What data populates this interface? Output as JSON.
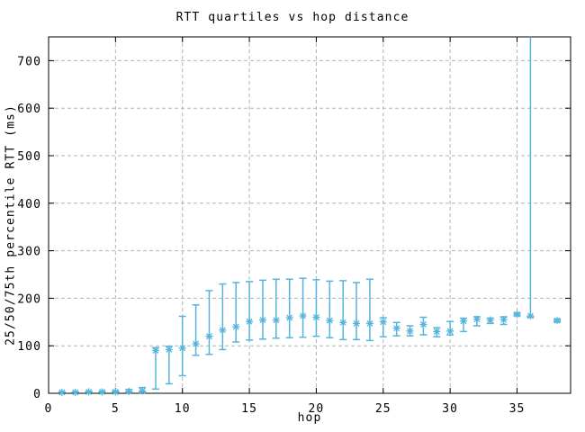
{
  "chart_data": {
    "type": "scatter",
    "subtype": "errorbars",
    "title": "RTT quartiles vs hop distance",
    "xlabel": "hop",
    "ylabel": "25/50/75th percentile RTT (ms)",
    "xlim": [
      0,
      39
    ],
    "ylim": [
      0,
      750
    ],
    "xticks": [
      0,
      5,
      10,
      15,
      20,
      25,
      30,
      35
    ],
    "yticks": [
      0,
      100,
      200,
      300,
      400,
      500,
      600,
      700
    ],
    "grid": true,
    "legend": false,
    "marker": "asterisk",
    "series_name": "RTT quartiles",
    "colors": {
      "series": "#56b4dc",
      "grid": "#b4b4b4",
      "axis": "#000000",
      "background": "#ffffff"
    },
    "points": [
      {
        "hop": 1,
        "q1": 2,
        "median": 2,
        "q3": 3
      },
      {
        "hop": 2,
        "q1": 2,
        "median": 2,
        "q3": 3
      },
      {
        "hop": 3,
        "q1": 2,
        "median": 3,
        "q3": 4
      },
      {
        "hop": 4,
        "q1": 2,
        "median": 3,
        "q3": 4
      },
      {
        "hop": 5,
        "q1": 2,
        "median": 3,
        "q3": 5
      },
      {
        "hop": 6,
        "q1": 2,
        "median": 4,
        "q3": 8
      },
      {
        "hop": 7,
        "q1": 3,
        "median": 5,
        "q3": 12
      },
      {
        "hop": 8,
        "q1": 9,
        "median": 90,
        "q3": 96
      },
      {
        "hop": 9,
        "q1": 20,
        "median": 92,
        "q3": 99
      },
      {
        "hop": 10,
        "q1": 37,
        "median": 95,
        "q3": 162
      },
      {
        "hop": 11,
        "q1": 80,
        "median": 104,
        "q3": 186
      },
      {
        "hop": 12,
        "q1": 82,
        "median": 120,
        "q3": 216
      },
      {
        "hop": 13,
        "q1": 92,
        "median": 133,
        "q3": 230
      },
      {
        "hop": 14,
        "q1": 108,
        "median": 140,
        "q3": 233
      },
      {
        "hop": 15,
        "q1": 112,
        "median": 151,
        "q3": 235
      },
      {
        "hop": 16,
        "q1": 114,
        "median": 154,
        "q3": 238
      },
      {
        "hop": 17,
        "q1": 116,
        "median": 154,
        "q3": 240
      },
      {
        "hop": 18,
        "q1": 117,
        "median": 159,
        "q3": 240
      },
      {
        "hop": 19,
        "q1": 118,
        "median": 163,
        "q3": 242
      },
      {
        "hop": 20,
        "q1": 120,
        "median": 160,
        "q3": 239
      },
      {
        "hop": 21,
        "q1": 117,
        "median": 153,
        "q3": 236
      },
      {
        "hop": 22,
        "q1": 113,
        "median": 149,
        "q3": 237
      },
      {
        "hop": 23,
        "q1": 113,
        "median": 147,
        "q3": 233
      },
      {
        "hop": 24,
        "q1": 111,
        "median": 147,
        "q3": 240
      },
      {
        "hop": 25,
        "q1": 119,
        "median": 150,
        "q3": 159
      },
      {
        "hop": 26,
        "q1": 121,
        "median": 137,
        "q3": 149
      },
      {
        "hop": 27,
        "q1": 121,
        "median": 131,
        "q3": 142
      },
      {
        "hop": 28,
        "q1": 123,
        "median": 145,
        "q3": 160
      },
      {
        "hop": 29,
        "q1": 119,
        "median": 130,
        "q3": 138
      },
      {
        "hop": 30,
        "q1": 123,
        "median": 131,
        "q3": 151
      },
      {
        "hop": 31,
        "q1": 130,
        "median": 152,
        "q3": 158
      },
      {
        "hop": 32,
        "q1": 142,
        "median": 156,
        "q3": 161
      },
      {
        "hop": 33,
        "q1": 147,
        "median": 154,
        "q3": 158
      },
      {
        "hop": 34,
        "q1": 145,
        "median": 155,
        "q3": 161
      },
      {
        "hop": 35,
        "q1": 163,
        "median": 166,
        "q3": 169
      },
      {
        "hop": 36,
        "q1": 160,
        "median": 163,
        "q3": 760
      },
      {
        "hop": 38,
        "q1": 150,
        "median": 153,
        "q3": 156
      }
    ]
  }
}
